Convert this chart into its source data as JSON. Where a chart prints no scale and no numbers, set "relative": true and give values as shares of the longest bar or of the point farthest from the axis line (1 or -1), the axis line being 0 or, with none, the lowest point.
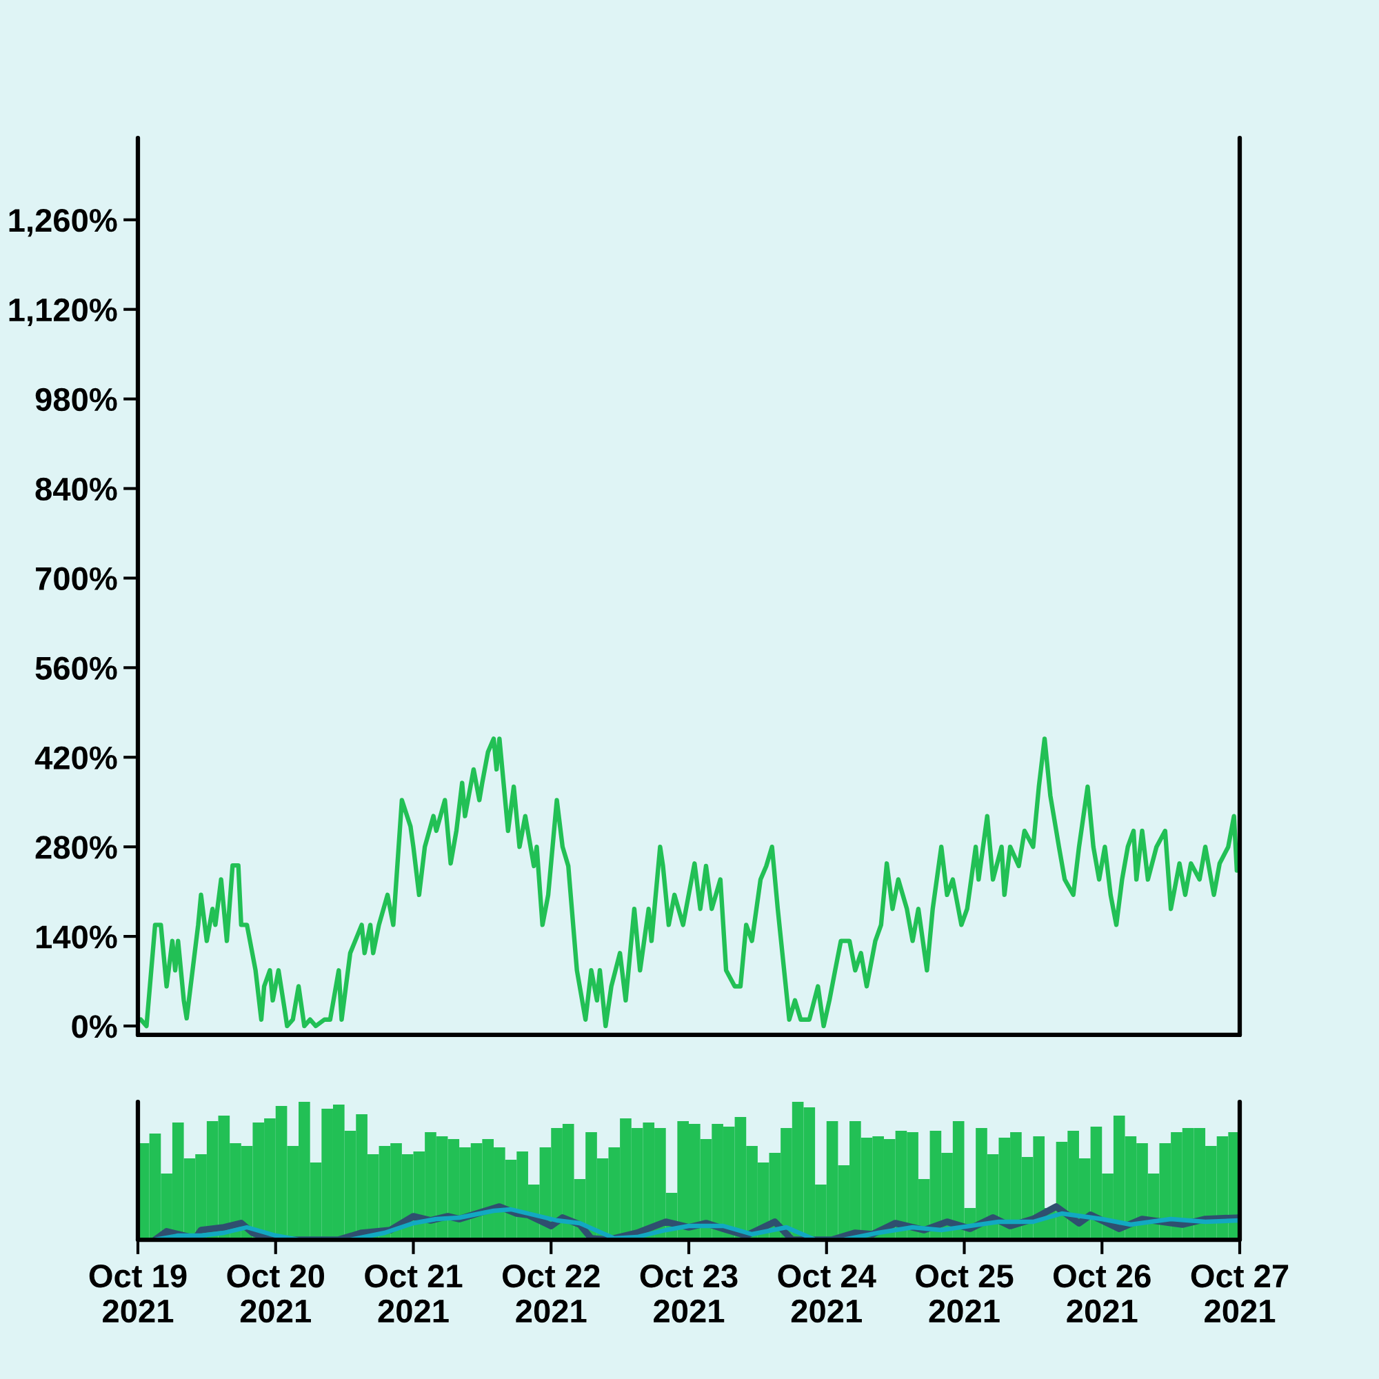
{
  "chart_data": [
    {
      "type": "line",
      "x": [
        "2021-10-19T00:30",
        "2021-10-19T01:30",
        "2021-10-19T03:00",
        "2021-10-19T04:00",
        "2021-10-19T05:00",
        "2021-10-19T06:00",
        "2021-10-19T06:30",
        "2021-10-19T07:00",
        "2021-10-19T08:00",
        "2021-10-19T08:30",
        "2021-10-19T10:30",
        "2021-10-19T11:00",
        "2021-10-19T12:00",
        "2021-10-19T13:00",
        "2021-10-19T13:30",
        "2021-10-19T14:30",
        "2021-10-19T15:30",
        "2021-10-19T16:30",
        "2021-10-19T17:30",
        "2021-10-19T18:00",
        "2021-10-19T19:00",
        "2021-10-19T20:30",
        "2021-10-19T21:30",
        "2021-10-19T22:00",
        "2021-10-19T23:00",
        "2021-10-19T23:30",
        "2021-10-20T00:30",
        "2021-10-20T01:30",
        "2021-10-20T02:00",
        "2021-10-20T03:00",
        "2021-10-20T04:00",
        "2021-10-20T05:00",
        "2021-10-20T06:00",
        "2021-10-20T07:00",
        "2021-10-20T08:30",
        "2021-10-20T09:30",
        "2021-10-20T11:00",
        "2021-10-20T11:30",
        "2021-10-20T13:00",
        "2021-10-20T15:00",
        "2021-10-20T15:30",
        "2021-10-20T16:30",
        "2021-10-20T17:00",
        "2021-10-20T18:00",
        "2021-10-20T19:30",
        "2021-10-20T20:30",
        "2021-10-20T22:00",
        "2021-10-20T23:30",
        "2021-10-21T00:00",
        "2021-10-21T01:00",
        "2021-10-21T02:00",
        "2021-10-21T03:30",
        "2021-10-21T04:00",
        "2021-10-21T05:30",
        "2021-10-21T06:30",
        "2021-10-21T07:30",
        "2021-10-21T08:30",
        "2021-10-21T09:00",
        "2021-10-21T10:30",
        "2021-10-21T11:30",
        "2021-10-21T12:00",
        "2021-10-21T13:00",
        "2021-10-21T14:00",
        "2021-10-21T14:30",
        "2021-10-21T15:00",
        "2021-10-21T16:30",
        "2021-10-21T17:30",
        "2021-10-21T18:30",
        "2021-10-21T19:30",
        "2021-10-21T21:00",
        "2021-10-21T21:30",
        "2021-10-21T22:30",
        "2021-10-21T23:30",
        "2021-10-22T01:00",
        "2021-10-22T02:00",
        "2021-10-22T03:00",
        "2021-10-22T04:30",
        "2021-10-22T06:00",
        "2021-10-22T07:00",
        "2021-10-22T08:00",
        "2021-10-22T08:30",
        "2021-10-22T09:30",
        "2021-10-22T10:30",
        "2021-10-22T12:00",
        "2021-10-22T13:00",
        "2021-10-22T14:30",
        "2021-10-22T15:30",
        "2021-10-22T17:00",
        "2021-10-22T17:30",
        "2021-10-22T19:00",
        "2021-10-22T19:30",
        "2021-10-22T20:30",
        "2021-10-22T21:30",
        "2021-10-22T23:00",
        "2021-10-23T01:00",
        "2021-10-23T02:00",
        "2021-10-23T03:00",
        "2021-10-23T04:00",
        "2021-10-23T05:30",
        "2021-10-23T06:30",
        "2021-10-23T08:00",
        "2021-10-23T09:00",
        "2021-10-23T10:00",
        "2021-10-23T11:00",
        "2021-10-23T12:30",
        "2021-10-23T13:30",
        "2021-10-23T14:30",
        "2021-10-23T15:30",
        "2021-10-23T17:30",
        "2021-10-23T18:30",
        "2021-10-23T19:30",
        "2021-10-23T21:00",
        "2021-10-23T22:30",
        "2021-10-23T23:30",
        "2021-10-24T00:30",
        "2021-10-24T01:30",
        "2021-10-24T02:30",
        "2021-10-24T04:00",
        "2021-10-24T05:00",
        "2021-10-24T06:00",
        "2021-10-24T07:00",
        "2021-10-24T08:30",
        "2021-10-24T09:30",
        "2021-10-24T10:30",
        "2021-10-24T11:30",
        "2021-10-24T12:30",
        "2021-10-24T14:00",
        "2021-10-24T15:00",
        "2021-10-24T16:00",
        "2021-10-24T17:30",
        "2021-10-24T18:30",
        "2021-10-24T20:00",
        "2021-10-24T21:00",
        "2021-10-24T22:00",
        "2021-10-24T23:30",
        "2021-10-25T00:30",
        "2021-10-25T02:00",
        "2021-10-25T02:30",
        "2021-10-25T04:00",
        "2021-10-25T05:00",
        "2021-10-25T06:30",
        "2021-10-25T07:00",
        "2021-10-25T08:00",
        "2021-10-25T09:30",
        "2021-10-25T10:30",
        "2021-10-25T12:00",
        "2021-10-25T13:00",
        "2021-10-25T14:00",
        "2021-10-25T15:00",
        "2021-10-25T16:30",
        "2021-10-25T17:30",
        "2021-10-25T19:00",
        "2021-10-25T20:00",
        "2021-10-25T21:30",
        "2021-10-25T22:30",
        "2021-10-25T23:30",
        "2021-10-26T00:30",
        "2021-10-26T01:30",
        "2021-10-26T02:30",
        "2021-10-26T03:30",
        "2021-10-26T04:30",
        "2021-10-26T05:30",
        "2021-10-26T06:00",
        "2021-10-26T07:00",
        "2021-10-26T08:00",
        "2021-10-26T09:30",
        "2021-10-26T11:00",
        "2021-10-26T12:00",
        "2021-10-26T13:30",
        "2021-10-26T14:30",
        "2021-10-26T15:30",
        "2021-10-26T17:00",
        "2021-10-26T18:00",
        "2021-10-26T19:30",
        "2021-10-26T20:30",
        "2021-10-26T22:00",
        "2021-10-26T23:00",
        "2021-10-26T23:30"
      ],
      "series": [
        {
          "color": "#22c055",
          "values": [
            10,
            0,
            158,
            158,
            62,
            133,
            87,
            133,
            40,
            12,
            158,
            205,
            133,
            183,
            158,
            229,
            133,
            251,
            251,
            158,
            158,
            87,
            10,
            62,
            87,
            40,
            87,
            30,
            0,
            10,
            62,
            0,
            10,
            0,
            10,
            10,
            87,
            10,
            114,
            158,
            114,
            158,
            114,
            158,
            205,
            158,
            353,
            312,
            280,
            205,
            280,
            328,
            305,
            353,
            254,
            305,
            380,
            328,
            401,
            353,
            380,
            428,
            449,
            401,
            449,
            305,
            374,
            280,
            328,
            250,
            280,
            158,
            205,
            353,
            280,
            250,
            87,
            10,
            87,
            40,
            87,
            0,
            62,
            114,
            40,
            183,
            87,
            183,
            133,
            280,
            250,
            158,
            205,
            158,
            254,
            183,
            250,
            183,
            229,
            87,
            62,
            62,
            158,
            133,
            229,
            250,
            280,
            183,
            10,
            40,
            10,
            10,
            62,
            0,
            40,
            87,
            133,
            133,
            87,
            114,
            62,
            133,
            158,
            254,
            183,
            229,
            183,
            133,
            183,
            87,
            183,
            280,
            205,
            229,
            158,
            183,
            280,
            229,
            328,
            229,
            280,
            205,
            280,
            250,
            305,
            280,
            374,
            449,
            360,
            280,
            229,
            205,
            280,
            374,
            280,
            229,
            280,
            205,
            158,
            229,
            280,
            305,
            229,
            305,
            229,
            280,
            305,
            183,
            254,
            205,
            254,
            229,
            280,
            205,
            254,
            280,
            328,
            243
          ]
        }
      ],
      "xlim": [
        "2021-10-19",
        "2021-10-27"
      ],
      "ylim": [
        -14,
        1388
      ],
      "yticks": [
        {
          "value": 0,
          "label": "0%"
        },
        {
          "value": 140,
          "label": "140%"
        },
        {
          "value": 280,
          "label": "280%"
        },
        {
          "value": 420,
          "label": "420%"
        },
        {
          "value": 560,
          "label": "560%"
        },
        {
          "value": 700,
          "label": "700%"
        },
        {
          "value": 840,
          "label": "840%"
        },
        {
          "value": 980,
          "label": "980%"
        },
        {
          "value": 1120,
          "label": "1,120%"
        },
        {
          "value": 1260,
          "label": "1,260%"
        }
      ],
      "tick_labels": "y"
    },
    {
      "type": "bar",
      "relative": true,
      "series": [
        {
          "type": "bar",
          "color": "#22c055",
          "x": [
            "2021-10-19T01:00",
            "2021-10-19T03:00",
            "2021-10-19T05:00",
            "2021-10-19T07:00",
            "2021-10-19T09:00",
            "2021-10-19T11:00",
            "2021-10-19T13:00",
            "2021-10-19T15:00",
            "2021-10-19T17:00",
            "2021-10-19T19:00",
            "2021-10-19T21:00",
            "2021-10-19T23:00",
            "2021-10-20T01:00",
            "2021-10-20T03:00",
            "2021-10-20T05:00",
            "2021-10-20T07:00",
            "2021-10-20T09:00",
            "2021-10-20T11:00",
            "2021-10-20T13:00",
            "2021-10-20T15:00",
            "2021-10-20T17:00",
            "2021-10-20T19:00",
            "2021-10-20T21:00",
            "2021-10-20T23:00",
            "2021-10-21T01:00",
            "2021-10-21T03:00",
            "2021-10-21T05:00",
            "2021-10-21T07:00",
            "2021-10-21T09:00",
            "2021-10-21T11:00",
            "2021-10-21T13:00",
            "2021-10-21T15:00",
            "2021-10-21T17:00",
            "2021-10-21T19:00",
            "2021-10-21T21:00",
            "2021-10-21T23:00",
            "2021-10-22T01:00",
            "2021-10-22T03:00",
            "2021-10-22T05:00",
            "2021-10-22T07:00",
            "2021-10-22T09:00",
            "2021-10-22T11:00",
            "2021-10-22T13:00",
            "2021-10-22T15:00",
            "2021-10-22T17:00",
            "2021-10-22T19:00",
            "2021-10-22T21:00",
            "2021-10-22T23:00",
            "2021-10-23T01:00",
            "2021-10-23T03:00",
            "2021-10-23T05:00",
            "2021-10-23T07:00",
            "2021-10-23T09:00",
            "2021-10-23T11:00",
            "2021-10-23T13:00",
            "2021-10-23T15:00",
            "2021-10-23T17:00",
            "2021-10-23T19:00",
            "2021-10-23T21:00",
            "2021-10-23T23:00",
            "2021-10-24T01:00",
            "2021-10-24T03:00",
            "2021-10-24T05:00",
            "2021-10-24T07:00",
            "2021-10-24T09:00",
            "2021-10-24T11:00",
            "2021-10-24T13:00",
            "2021-10-24T15:00",
            "2021-10-24T17:00",
            "2021-10-24T19:00",
            "2021-10-24T21:00",
            "2021-10-24T23:00",
            "2021-10-25T01:00",
            "2021-10-25T03:00",
            "2021-10-25T05:00",
            "2021-10-25T07:00",
            "2021-10-25T09:00",
            "2021-10-25T11:00",
            "2021-10-25T13:00",
            "2021-10-25T15:00",
            "2021-10-25T17:00",
            "2021-10-25T19:00",
            "2021-10-25T21:00",
            "2021-10-25T23:00",
            "2021-10-26T01:00",
            "2021-10-26T03:00",
            "2021-10-26T05:00",
            "2021-10-26T07:00",
            "2021-10-26T09:00",
            "2021-10-26T11:00",
            "2021-10-26T13:00",
            "2021-10-26T15:00",
            "2021-10-26T17:00",
            "2021-10-26T19:00",
            "2021-10-26T21:00",
            "2021-10-26T23:00"
          ],
          "values": [
            0.7,
            0.77,
            0.48,
            0.85,
            0.59,
            0.62,
            0.86,
            0.9,
            0.7,
            0.68,
            0.85,
            0.88,
            0.97,
            0.68,
            1,
            0.56,
            0.95,
            0.98,
            0.79,
            0.91,
            0.62,
            0.68,
            0.7,
            0.62,
            0.64,
            0.78,
            0.75,
            0.73,
            0.67,
            0.7,
            0.73,
            0.67,
            0.58,
            0.64,
            0.4,
            0.67,
            0.81,
            0.84,
            0.44,
            0.78,
            0.59,
            0.67,
            0.88,
            0.81,
            0.85,
            0.81,
            0.34,
            0.86,
            0.84,
            0.73,
            0.84,
            0.82,
            0.89,
            0.68,
            0.56,
            0.63,
            0.81,
            1,
            0.96,
            0.4,
            0.86,
            0.54,
            0.86,
            0.74,
            0.75,
            0.73,
            0.79,
            0.78,
            0.44,
            0.79,
            0.63,
            0.86,
            0.23,
            0.81,
            0.62,
            0.74,
            0.78,
            0.6,
            0.75,
            0.23,
            0.71,
            0.79,
            0.59,
            0.82,
            0.48,
            0.9,
            0.75,
            0.7,
            0.48,
            0.7,
            0.78,
            0.81,
            0.81,
            0.68,
            0.75,
            0.78
          ]
        },
        {
          "type": "line",
          "color": "#2f4f6f",
          "x": [
            "2021-10-19T03:00",
            "2021-10-19T05:00",
            "2021-10-19T07:00",
            "2021-10-19T10:00",
            "2021-10-19T11:00",
            "2021-10-19T15:00",
            "2021-10-19T18:00",
            "2021-10-19T20:00",
            "2021-10-19T23:00",
            "2021-10-20T05:00",
            "2021-10-20T11:00",
            "2021-10-20T15:00",
            "2021-10-20T20:00",
            "2021-10-21T00:00",
            "2021-10-21T03:00",
            "2021-10-21T06:00",
            "2021-10-21T08:00",
            "2021-10-21T15:00",
            "2021-10-21T18:00",
            "2021-10-21T20:00",
            "2021-10-22T00:00",
            "2021-10-22T02:00",
            "2021-10-22T05:00",
            "2021-10-22T07:00",
            "2021-10-22T10:00",
            "2021-10-22T15:00",
            "2021-10-22T20:00",
            "2021-10-23T00:00",
            "2021-10-23T03:00",
            "2021-10-23T06:00",
            "2021-10-23T10:00",
            "2021-10-23T15:00",
            "2021-10-23T18:00",
            "2021-10-23T22:00",
            "2021-10-24T01:00",
            "2021-10-24T05:00",
            "2021-10-24T08:00",
            "2021-10-24T12:00",
            "2021-10-24T17:00",
            "2021-10-24T21:00",
            "2021-10-25T01:00",
            "2021-10-25T05:00",
            "2021-10-25T08:00",
            "2021-10-25T12:00",
            "2021-10-25T16:00",
            "2021-10-25T20:00",
            "2021-10-25T22:00",
            "2021-10-26T03:00",
            "2021-10-26T07:00",
            "2021-10-26T14:00",
            "2021-10-26T18:00",
            "2021-10-27T00:00"
          ],
          "values": [
            0,
            0.06,
            0.04,
            0.01,
            0.07,
            0.09,
            0.12,
            0.05,
            0,
            0,
            0,
            0.05,
            0.07,
            0.17,
            0.14,
            0.17,
            0.15,
            0.24,
            0.19,
            0.18,
            0.1,
            0.16,
            0.11,
            0.01,
            0,
            0.05,
            0.13,
            0.09,
            0.12,
            0.08,
            0.03,
            0.13,
            0,
            0,
            0,
            0.05,
            0.04,
            0.12,
            0.07,
            0.13,
            0.08,
            0.16,
            0.1,
            0.15,
            0.24,
            0.12,
            0.18,
            0.08,
            0.15,
            0.11,
            0.15,
            0.16
          ]
        },
        {
          "type": "line",
          "color": "#12a9c2",
          "x": [
            "2021-10-19T03:00",
            "2021-10-19T07:00",
            "2021-10-19T11:00",
            "2021-10-19T15:00",
            "2021-10-19T19:00",
            "2021-10-20T00:00",
            "2021-10-20T04:00",
            "2021-10-20T13:00",
            "2021-10-20T19:00",
            "2021-10-21T00:00",
            "2021-10-21T04:00",
            "2021-10-21T08:00",
            "2021-10-21T14:00",
            "2021-10-21T17:00",
            "2021-10-21T20:00",
            "2021-10-22T01:00",
            "2021-10-22T05:00",
            "2021-10-22T11:00",
            "2021-10-22T15:00",
            "2021-10-22T20:00",
            "2021-10-23T00:00",
            "2021-10-23T06:00",
            "2021-10-23T11:00",
            "2021-10-23T17:00",
            "2021-10-23T22:00",
            "2021-10-24T03:00",
            "2021-10-24T09:00",
            "2021-10-24T15:00",
            "2021-10-24T20:00",
            "2021-10-25T06:00",
            "2021-10-25T12:00",
            "2021-10-25T17:00",
            "2021-10-26T00:00",
            "2021-10-26T05:00",
            "2021-10-26T12:00",
            "2021-10-26T18:00",
            "2021-10-27T00:00"
          ],
          "values": [
            0,
            0.03,
            0.03,
            0.05,
            0.09,
            0.03,
            0,
            0,
            0.05,
            0.12,
            0.15,
            0.16,
            0.21,
            0.22,
            0.19,
            0.14,
            0.12,
            0.01,
            0.02,
            0.07,
            0.1,
            0.1,
            0.04,
            0.09,
            0,
            0,
            0.05,
            0.09,
            0.07,
            0.13,
            0.13,
            0.19,
            0.15,
            0.11,
            0.15,
            0.13,
            0.14
          ]
        }
      ],
      "xlim": [
        "2021-10-19",
        "2021-10-27"
      ],
      "xticks": [
        {
          "value": "2021-10-19",
          "label": "Oct 19\n2021"
        },
        {
          "value": "2021-10-20",
          "label": "Oct 20\n2021"
        },
        {
          "value": "2021-10-21",
          "label": "Oct 21\n2021"
        },
        {
          "value": "2021-10-22",
          "label": "Oct 22\n2021"
        },
        {
          "value": "2021-10-23",
          "label": "Oct 23\n2021"
        },
        {
          "value": "2021-10-24",
          "label": "Oct 24\n2021"
        },
        {
          "value": "2021-10-25",
          "label": "Oct 25\n2021"
        },
        {
          "value": "2021-10-26",
          "label": "Oct 26\n2021"
        },
        {
          "value": "2021-10-27",
          "label": "Oct 27\n2021"
        }
      ],
      "tick_labels": "x"
    }
  ]
}
